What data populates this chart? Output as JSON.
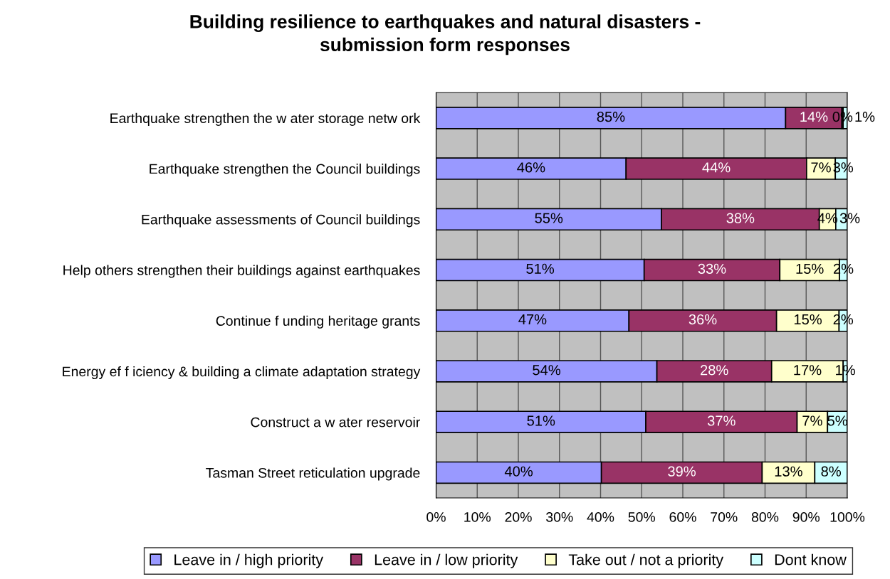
{
  "chart_data": {
    "type": "bar",
    "orientation": "horizontal",
    "stacked": true,
    "title": "Building resilience to earthquakes and natural disasters -\nsubmission form responses",
    "categories": [
      "Earthquake strengthen the w ater storage netw ork",
      "Earthquake strengthen the Council buildings",
      "Earthquake assessments of Council buildings",
      "Help others strengthen their buildings against earthquakes",
      "Continue f unding heritage grants",
      "Energy ef f iciency & building a climate adaptation strategy",
      "Construct a w ater reservoir",
      "Tasman Street reticulation upgrade"
    ],
    "series": [
      {
        "name": "Leave in / high priority",
        "color": "#9999ff",
        "values": [
          85.0,
          46.2,
          54.8,
          50.6,
          46.9,
          53.7,
          51.0,
          40.2
        ],
        "value_labels": [
          "85%",
          "46%",
          "55%",
          "51%",
          "47%",
          "54%",
          "51%",
          "40%"
        ]
      },
      {
        "name": "Leave in / low priority",
        "color": "#993366",
        "values": [
          13.7,
          43.9,
          38.4,
          33.0,
          35.9,
          27.9,
          36.8,
          39.1
        ],
        "value_labels": [
          "14%",
          "44%",
          "38%",
          "33%",
          "36%",
          "28%",
          "37%",
          "39%"
        ]
      },
      {
        "name": "Take out / not a priority",
        "color": "#ffffcc",
        "values": [
          0.3,
          7.0,
          4.0,
          14.5,
          15.2,
          17.4,
          7.4,
          12.8
        ],
        "value_labels": [
          "0%",
          "7%",
          "4%",
          "15%",
          "15%",
          "17%",
          "7%",
          "13%"
        ]
      },
      {
        "name": "Dont know",
        "color": "#ccffff",
        "values": [
          1.0,
          2.9,
          2.8,
          1.9,
          2.0,
          1.0,
          4.8,
          7.9
        ],
        "value_labels": [
          "1%",
          "3%",
          "3%",
          "2%",
          "2%",
          "1%",
          "5%",
          "8%"
        ]
      }
    ],
    "xlim": [
      0,
      100
    ],
    "xticks": [
      {
        "value": 0,
        "label": "0%"
      },
      {
        "value": 10,
        "label": "10%"
      },
      {
        "value": 20,
        "label": "20%"
      },
      {
        "value": 30,
        "label": "30%"
      },
      {
        "value": 40,
        "label": "40%"
      },
      {
        "value": 50,
        "label": "50%"
      },
      {
        "value": 60,
        "label": "60%"
      },
      {
        "value": 70,
        "label": "70%"
      },
      {
        "value": 80,
        "label": "80%"
      },
      {
        "value": 90,
        "label": "90%"
      },
      {
        "value": 100,
        "label": "100%"
      }
    ],
    "grid": "x",
    "legend": "bottom"
  }
}
